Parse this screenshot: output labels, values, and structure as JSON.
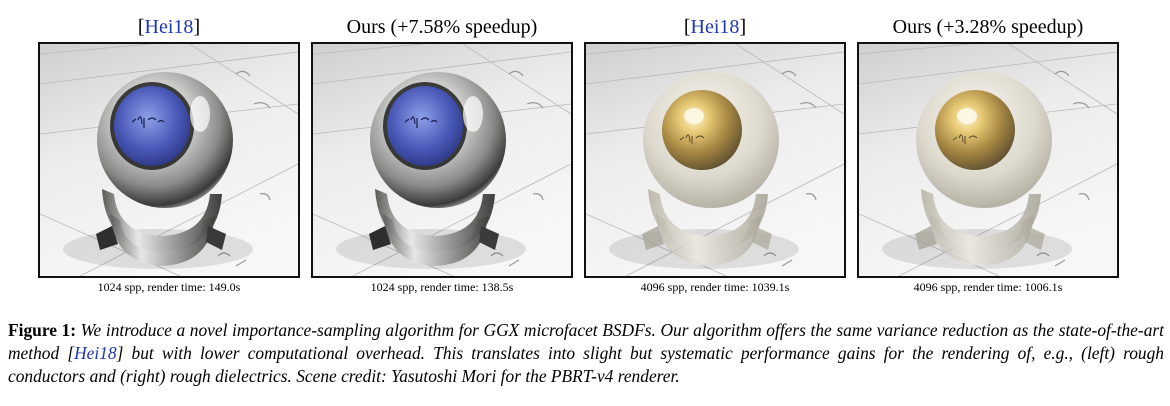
{
  "panels": [
    {
      "title_prefix": "[",
      "title_cite": "Hei18",
      "title_suffix": "]",
      "caption": "1024 spp, render time: 149.0s",
      "material": "conductor"
    },
    {
      "title_prefix": "Ours (+7.58% speedup)",
      "title_cite": "",
      "title_suffix": "",
      "caption": "1024 spp, render time: 138.5s",
      "material": "conductor"
    },
    {
      "title_prefix": "[",
      "title_cite": "Hei18",
      "title_suffix": "]",
      "caption": "4096 spp, render time: 1039.1s",
      "material": "dielectric"
    },
    {
      "title_prefix": "Ours (+3.28% speedup)",
      "title_cite": "",
      "title_suffix": "",
      "caption": "4096 spp, render time: 1006.1s",
      "material": "dielectric"
    }
  ],
  "figure": {
    "label": "Figure 1:",
    "text_before_cite": "We introduce a novel importance-sampling algorithm for GGX microfacet BSDFs. Our algorithm offers the same variance reduction as the state-of-the-art method [",
    "cite": "Hei18",
    "text_after_cite": "] but with lower computational overhead. This translates into slight but systematic performance gains for the rendering of, e.g., (left) rough conductors and (right) rough dielectrics. Scene credit: Yasutoshi Mori for the PBRT-v4 renderer."
  },
  "colors": {
    "citation": "#1f37b4"
  }
}
